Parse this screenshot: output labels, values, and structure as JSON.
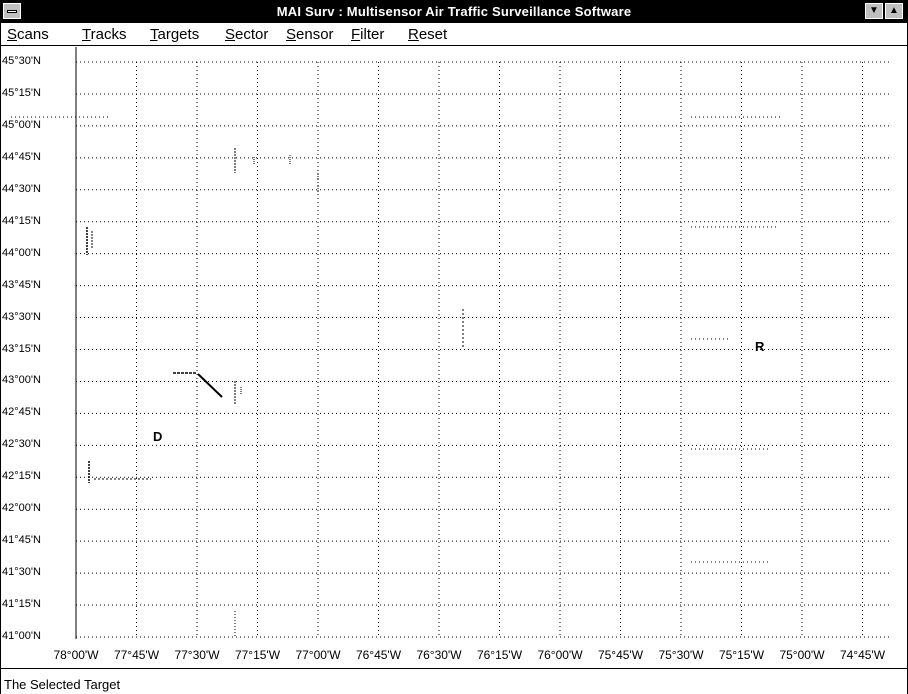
{
  "window": {
    "title": "MAI Surv : Multisensor Air Traffic Surveillance Software"
  },
  "menu": [
    {
      "label": "Scans",
      "acc": "S",
      "rest": "cans"
    },
    {
      "label": "Tracks",
      "acc": "T",
      "rest": "racks"
    },
    {
      "label": "Targets",
      "acc": "T",
      "rest": "argets"
    },
    {
      "label": "Sector",
      "acc": "S",
      "rest": "ector"
    },
    {
      "label": "Sensor",
      "acc": "S",
      "rest": "ensor"
    },
    {
      "label": "Filter",
      "acc": "F",
      "rest": "ilter"
    },
    {
      "label": "Reset",
      "acc": "R",
      "rest": "eset"
    }
  ],
  "map": {
    "lat_labels": [
      "45°30'N",
      "45°15'N",
      "45°00'N",
      "44°45'N",
      "44°30'N",
      "44°15'N",
      "44°00'N",
      "43°45'N",
      "43°30'N",
      "43°15'N",
      "43°00'N",
      "42°45'N",
      "42°30'N",
      "42°15'N",
      "42°00'N",
      "41°45'N",
      "41°30'N",
      "41°15'N",
      "41°00'N"
    ],
    "lon_labels": [
      "78°00'W",
      "77°45'W",
      "77°30'W",
      "77°15'W",
      "77°00'W",
      "76°45'W",
      "76°30'W",
      "76°15'W",
      "76°00'W",
      "75°45'W",
      "75°30'W",
      "75°15'W",
      "75°00'W",
      "74°45'W"
    ],
    "markers": [
      {
        "label": "D"
      },
      {
        "label": "R"
      }
    ],
    "grid": "dotted",
    "colors": {
      "grid": "#000000",
      "tracks": "#000000"
    }
  },
  "status": {
    "text": "The Selected Target"
  }
}
